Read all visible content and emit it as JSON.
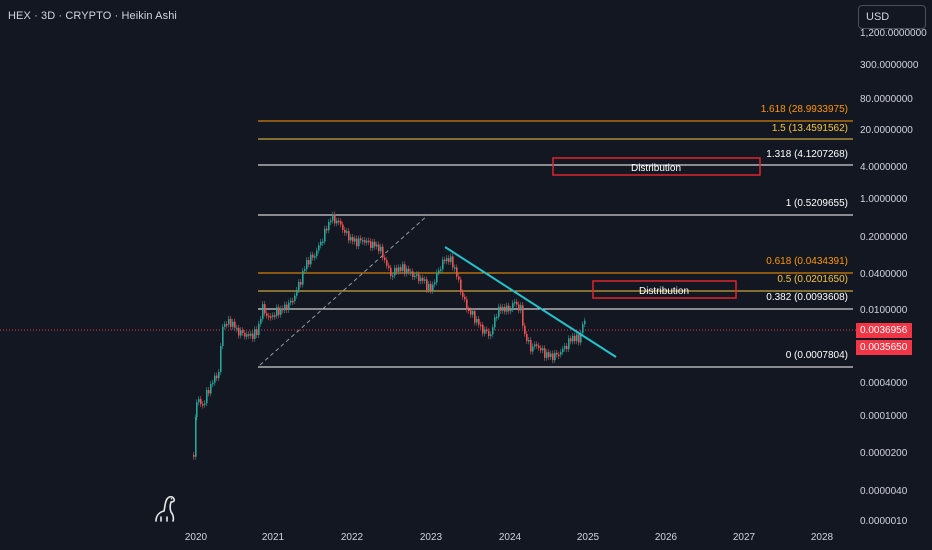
{
  "header": {
    "title": "HEX · 3D · CRYPTO · Heikin Ashi",
    "currency_button": "USD"
  },
  "price_scale": {
    "cut_top_label": "1,200.0000000",
    "labels": [
      "300.0000000",
      "80.0000000",
      "20.0000000",
      "4.0000000",
      "1.0000000",
      "0.2000000",
      "0.0400000",
      "0.0100000",
      "0.0004000",
      "0.0001000",
      "0.0000200",
      "0.0000040",
      "0.0000010"
    ],
    "current_price_tags": [
      "0.0036956",
      "0.0035650"
    ],
    "tag_color": "#f23645"
  },
  "time_axis": {
    "labels": [
      "2020",
      "2021",
      "2022",
      "2023",
      "2024",
      "2025",
      "2026",
      "2027",
      "2028"
    ]
  },
  "fib_levels": [
    {
      "label": "1.618 (28.9933975)",
      "color": "#ff9800"
    },
    {
      "label": "1.5 (13.4591562)",
      "color": "#f5c542"
    },
    {
      "label": "1.318 (4.1207268)",
      "color": "#ffffff"
    },
    {
      "label": "1 (0.5209655)",
      "color": "#ffffff"
    },
    {
      "label": "0.618 (0.0434391)",
      "color": "#ff9800"
    },
    {
      "label": "0.5 (0.0201650)",
      "color": "#f5c542"
    },
    {
      "label": "0.382 (0.0093608)",
      "color": "#ffffff"
    },
    {
      "label": "0 (0.0007804)",
      "color": "#ffffff"
    }
  ],
  "annotations": [
    {
      "text": "Distribution"
    },
    {
      "text": "Distribution"
    }
  ],
  "colors": {
    "background": "#131722",
    "up_candle": "#26a69a",
    "down_candle": "#ef5350",
    "trendline": "#22c3cc",
    "box_border": "#e0262c"
  }
}
